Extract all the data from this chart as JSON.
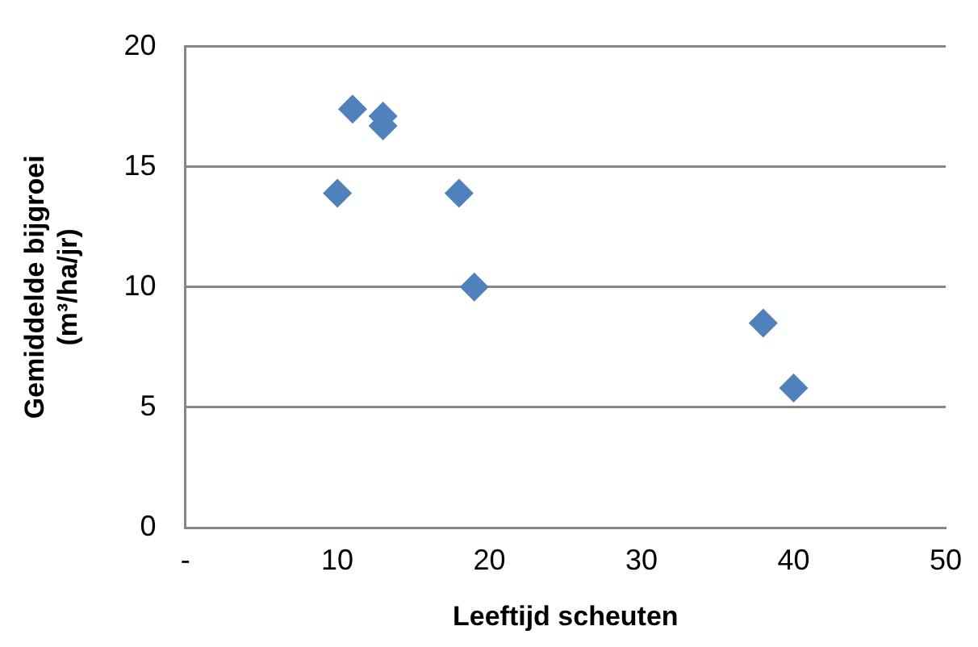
{
  "chart_data": {
    "type": "scatter",
    "xlabel": "Leeftijd scheuten",
    "ylabel": "Gemiddelde bijgroei (m³/ha/jr)",
    "series": [
      {
        "color": "#4f81bd",
        "x": [
          10,
          11,
          13,
          13,
          18,
          19,
          38,
          40
        ],
        "values": [
          13.9,
          17.4,
          17.1,
          16.7,
          13.9,
          10.0,
          8.5,
          5.8
        ]
      }
    ],
    "xlim": [
      0,
      50
    ],
    "xticks": [
      {
        "value": 0,
        "label": "-"
      },
      10,
      20,
      30,
      40,
      50
    ],
    "ylim": [
      0,
      20
    ],
    "yticks": [
      0,
      5,
      10,
      15,
      20
    ],
    "grid": "y",
    "marker": "diamond",
    "legend": false
  }
}
